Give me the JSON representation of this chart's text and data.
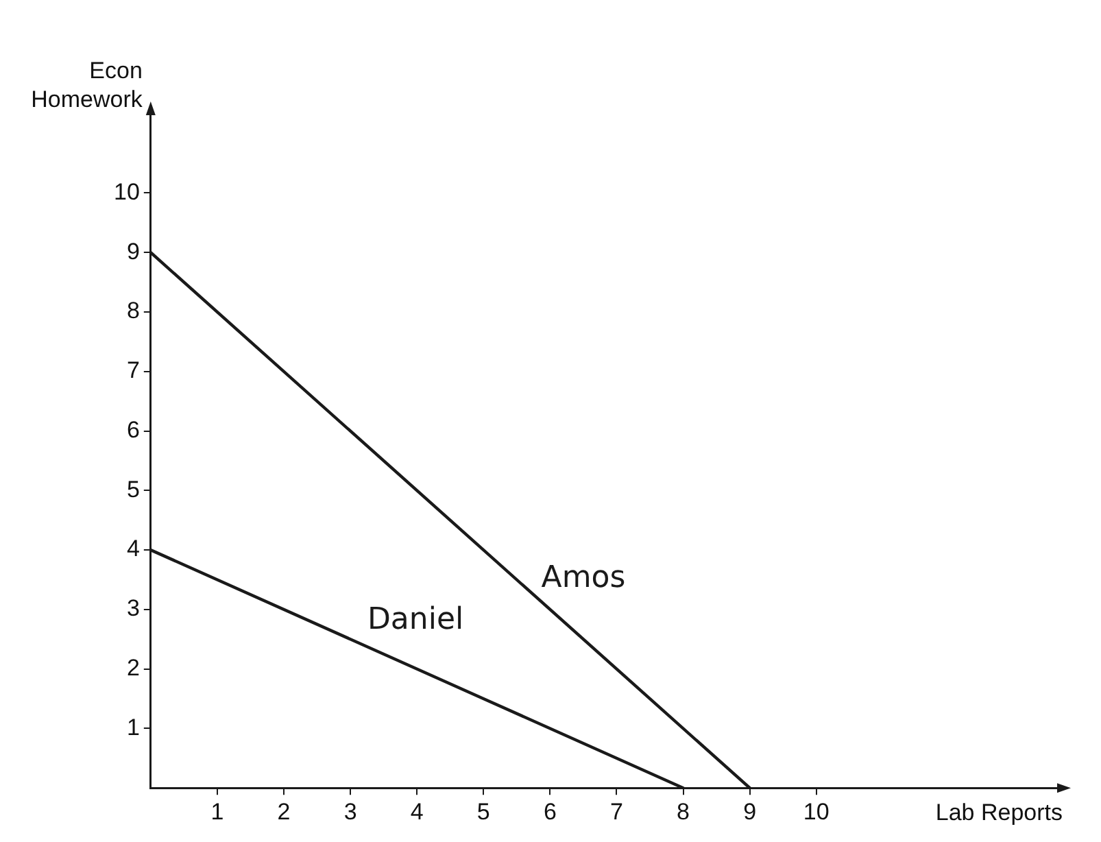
{
  "chart_data": {
    "type": "line",
    "xlabel": "Lab Reports",
    "ylabel": "Econ Homework",
    "series": [
      {
        "name": "Amos",
        "color": "#1a1a1a",
        "x": [
          0,
          9
        ],
        "values": [
          9,
          0
        ]
      },
      {
        "name": "Daniel",
        "color": "#1a1a1a",
        "x": [
          0,
          8
        ],
        "values": [
          4,
          0
        ]
      }
    ],
    "xlim": [
      0,
      13.7
    ],
    "ylim": [
      0,
      11.4
    ],
    "xticks": [
      1,
      2,
      3,
      4,
      5,
      6,
      7,
      8,
      9,
      10
    ],
    "yticks": [
      1,
      2,
      3,
      4,
      5,
      6,
      7,
      8,
      9,
      10
    ],
    "legend": false,
    "marker": "none",
    "line_style": "solid"
  }
}
